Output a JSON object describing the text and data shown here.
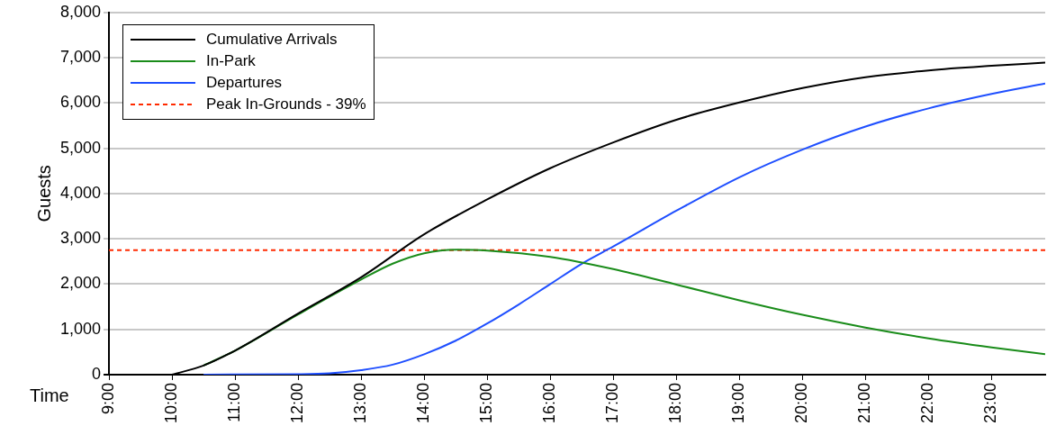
{
  "chart_data": {
    "type": "line",
    "ylabel": "Guests",
    "xlabel": "Time",
    "xlim": [
      9,
      23.85
    ],
    "xticks": [
      {
        "value": 9,
        "label": "9:00"
      },
      {
        "value": 10,
        "label": "10:00"
      },
      {
        "value": 11,
        "label": "11:00"
      },
      {
        "value": 12,
        "label": "12:00"
      },
      {
        "value": 13,
        "label": "13:00"
      },
      {
        "value": 14,
        "label": "14:00"
      },
      {
        "value": 15,
        "label": "15:00"
      },
      {
        "value": 16,
        "label": "16:00"
      },
      {
        "value": 17,
        "label": "17:00"
      },
      {
        "value": 18,
        "label": "18:00"
      },
      {
        "value": 19,
        "label": "19:00"
      },
      {
        "value": 20,
        "label": "20:00"
      },
      {
        "value": 21,
        "label": "21:00"
      },
      {
        "value": 22,
        "label": "22:00"
      },
      {
        "value": 23,
        "label": "23:00"
      }
    ],
    "ylim": [
      0,
      8000
    ],
    "yticks": [
      {
        "value": 0,
        "label": "0"
      },
      {
        "value": 1000,
        "label": "1,000"
      },
      {
        "value": 2000,
        "label": "2,000"
      },
      {
        "value": 3000,
        "label": "3,000"
      },
      {
        "value": 4000,
        "label": "4,000"
      },
      {
        "value": 5000,
        "label": "5,000"
      },
      {
        "value": 6000,
        "label": "6,000"
      },
      {
        "value": 7000,
        "label": "7,000"
      },
      {
        "value": 8000,
        "label": "8,000"
      }
    ],
    "grid": "y",
    "legend": "top left",
    "line_style": "solid",
    "marker": "none",
    "series": [
      {
        "name": "Cumulative Arrivals",
        "color": "#000000",
        "x": [
          10,
          10.5,
          11,
          12,
          13,
          14,
          15,
          16,
          17,
          18,
          19,
          20,
          21,
          22,
          23,
          23.85
        ],
        "values": [
          0,
          200,
          530,
          1350,
          2150,
          3100,
          3870,
          4560,
          5130,
          5630,
          6010,
          6330,
          6570,
          6720,
          6820,
          6890
        ]
      },
      {
        "name": "In-Park",
        "color": "#1a8c1a",
        "x": [
          10.5,
          11,
          12,
          13,
          13.5,
          14,
          14.5,
          15,
          16,
          17,
          18,
          19,
          20,
          21,
          22,
          23,
          23.85
        ],
        "values": [
          200,
          530,
          1330,
          2100,
          2450,
          2680,
          2760,
          2740,
          2600,
          2330,
          1990,
          1640,
          1320,
          1040,
          800,
          600,
          450
        ]
      },
      {
        "name": "Departures",
        "color": "#1f4fff",
        "x": [
          10.5,
          12,
          12.5,
          13,
          13.5,
          14,
          14.5,
          15,
          15.5,
          16,
          16.5,
          17,
          18,
          19,
          20,
          21,
          22,
          23,
          23.85
        ],
        "values": [
          0,
          10,
          30,
          100,
          220,
          450,
          750,
          1130,
          1550,
          2000,
          2450,
          2830,
          3620,
          4360,
          4970,
          5480,
          5880,
          6200,
          6430
        ]
      }
    ],
    "ref_lines": [
      {
        "axis": "y",
        "value": 2750,
        "label": "Peak In-Grounds - 39%",
        "color": "#ff2a00",
        "line_style": "dashed"
      }
    ]
  }
}
